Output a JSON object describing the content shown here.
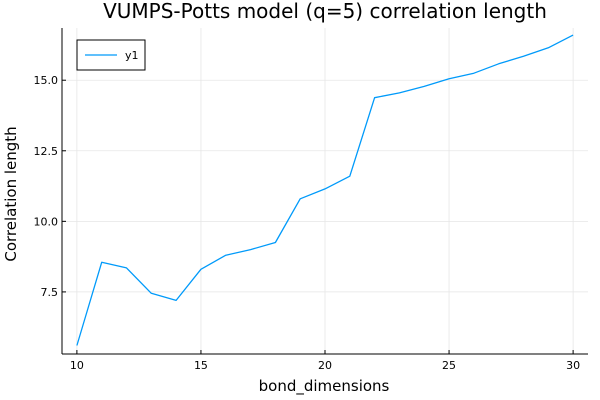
{
  "chart_data": {
    "type": "line",
    "title": "VUMPS-Potts model (q=5) correlation length",
    "xlabel": "bond_dimensions",
    "ylabel": "Correlation length",
    "xlim": [
      9.4,
      30.6
    ],
    "ylim": [
      5.3,
      16.85
    ],
    "xticks": [
      10,
      15,
      20,
      25,
      30
    ],
    "xtick_labels": [
      "10",
      "15",
      "20",
      "25",
      "30"
    ],
    "yticks": [
      7.5,
      10.0,
      12.5,
      15.0
    ],
    "ytick_labels": [
      "7.5",
      "10.0",
      "12.5",
      "15.0"
    ],
    "grid": true,
    "legend_position": "top-left",
    "series": [
      {
        "name": "y1",
        "color": "#009AFA",
        "x": [
          10,
          11,
          12,
          13,
          14,
          15,
          16,
          17,
          18,
          19,
          20,
          21,
          22,
          23,
          24,
          25,
          26,
          27,
          28,
          29,
          30
        ],
        "y": [
          5.6,
          8.55,
          8.35,
          7.45,
          7.2,
          8.3,
          8.8,
          9.0,
          9.25,
          10.8,
          11.15,
          11.6,
          14.38,
          14.55,
          14.78,
          15.05,
          15.25,
          15.58,
          15.85,
          16.15,
          16.6
        ]
      }
    ]
  }
}
